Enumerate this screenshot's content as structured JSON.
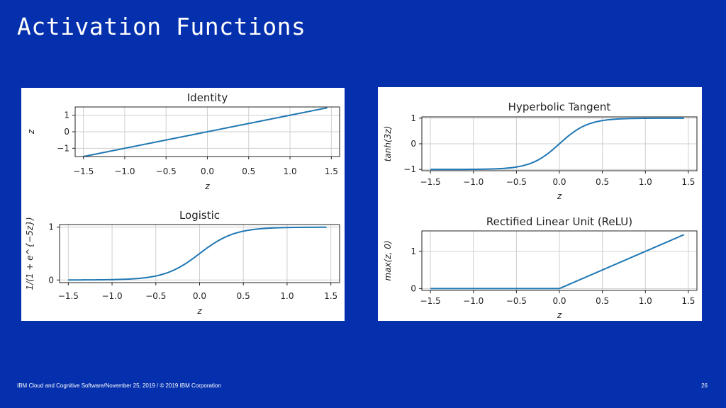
{
  "slide": {
    "title": "Activation Functions",
    "footer": "IBM Cloud and Cognitive Software/November 25, 2019 / © 2019 IBM Corporation",
    "page_number": "26"
  },
  "colors": {
    "background": "#0530ad",
    "line": "#1f77b4"
  },
  "chart_data": [
    {
      "id": "identity",
      "type": "line",
      "title": "Identity",
      "xlabel": "z",
      "ylabel": "z",
      "xlim": [
        -1.6,
        1.6
      ],
      "ylim": [
        -1.5,
        1.5
      ],
      "xticks": [
        -1.5,
        -1.0,
        -0.5,
        0.0,
        0.5,
        1.0,
        1.5
      ],
      "xticklabels": [
        "−1.5",
        "−1.0",
        "−0.5",
        "0.0",
        "0.5",
        "1.0",
        "1.5"
      ],
      "yticks": [
        -1,
        0,
        1
      ],
      "yticklabels": [
        "−1",
        "0",
        "1"
      ],
      "grid": true,
      "function": "identity",
      "x_range": [
        -1.5,
        1.45
      ]
    },
    {
      "id": "logistic",
      "type": "line",
      "title": "Logistic",
      "xlabel": "z",
      "ylabel": "1/(1 + e^{−5z})",
      "xlim": [
        -1.6,
        1.6
      ],
      "ylim": [
        -0.05,
        1.05
      ],
      "xticks": [
        -1.5,
        -1.0,
        -0.5,
        0.0,
        0.5,
        1.0,
        1.5
      ],
      "xticklabels": [
        "−1.5",
        "−1.0",
        "−0.5",
        "0.0",
        "0.5",
        "1.0",
        "1.5"
      ],
      "yticks": [
        0,
        1
      ],
      "yticklabels": [
        "0",
        "1"
      ],
      "grid": true,
      "function": "logistic",
      "x_range": [
        -1.5,
        1.45
      ]
    },
    {
      "id": "tanh",
      "type": "line",
      "title": "Hyperbolic Tangent",
      "xlabel": "z",
      "ylabel": "tanh(3z)",
      "xlim": [
        -1.6,
        1.6
      ],
      "ylim": [
        -1.05,
        1.05
      ],
      "xticks": [
        -1.5,
        -1.0,
        -0.5,
        0.0,
        0.5,
        1.0,
        1.5
      ],
      "xticklabels": [
        "−1.5",
        "−1.0",
        "−0.5",
        "0.0",
        "0.5",
        "1.0",
        "1.5"
      ],
      "yticks": [
        -1,
        0,
        1
      ],
      "yticklabels": [
        "−1",
        "0",
        "1"
      ],
      "grid": true,
      "function": "tanh",
      "x_range": [
        -1.5,
        1.45
      ]
    },
    {
      "id": "relu",
      "type": "line",
      "title": "Rectified Linear Unit (ReLU)",
      "xlabel": "z",
      "ylabel": "max(z, 0)",
      "xlim": [
        -1.6,
        1.6
      ],
      "ylim": [
        -0.05,
        1.55
      ],
      "xticks": [
        -1.5,
        -1.0,
        -0.5,
        0.0,
        0.5,
        1.0,
        1.5
      ],
      "xticklabels": [
        "−1.5",
        "−1.0",
        "−0.5",
        "0.0",
        "0.5",
        "1.0",
        "1.5"
      ],
      "yticks": [
        0,
        1
      ],
      "yticklabels": [
        "0",
        "1"
      ],
      "grid": true,
      "function": "relu",
      "x_range": [
        -1.5,
        1.45
      ]
    }
  ]
}
